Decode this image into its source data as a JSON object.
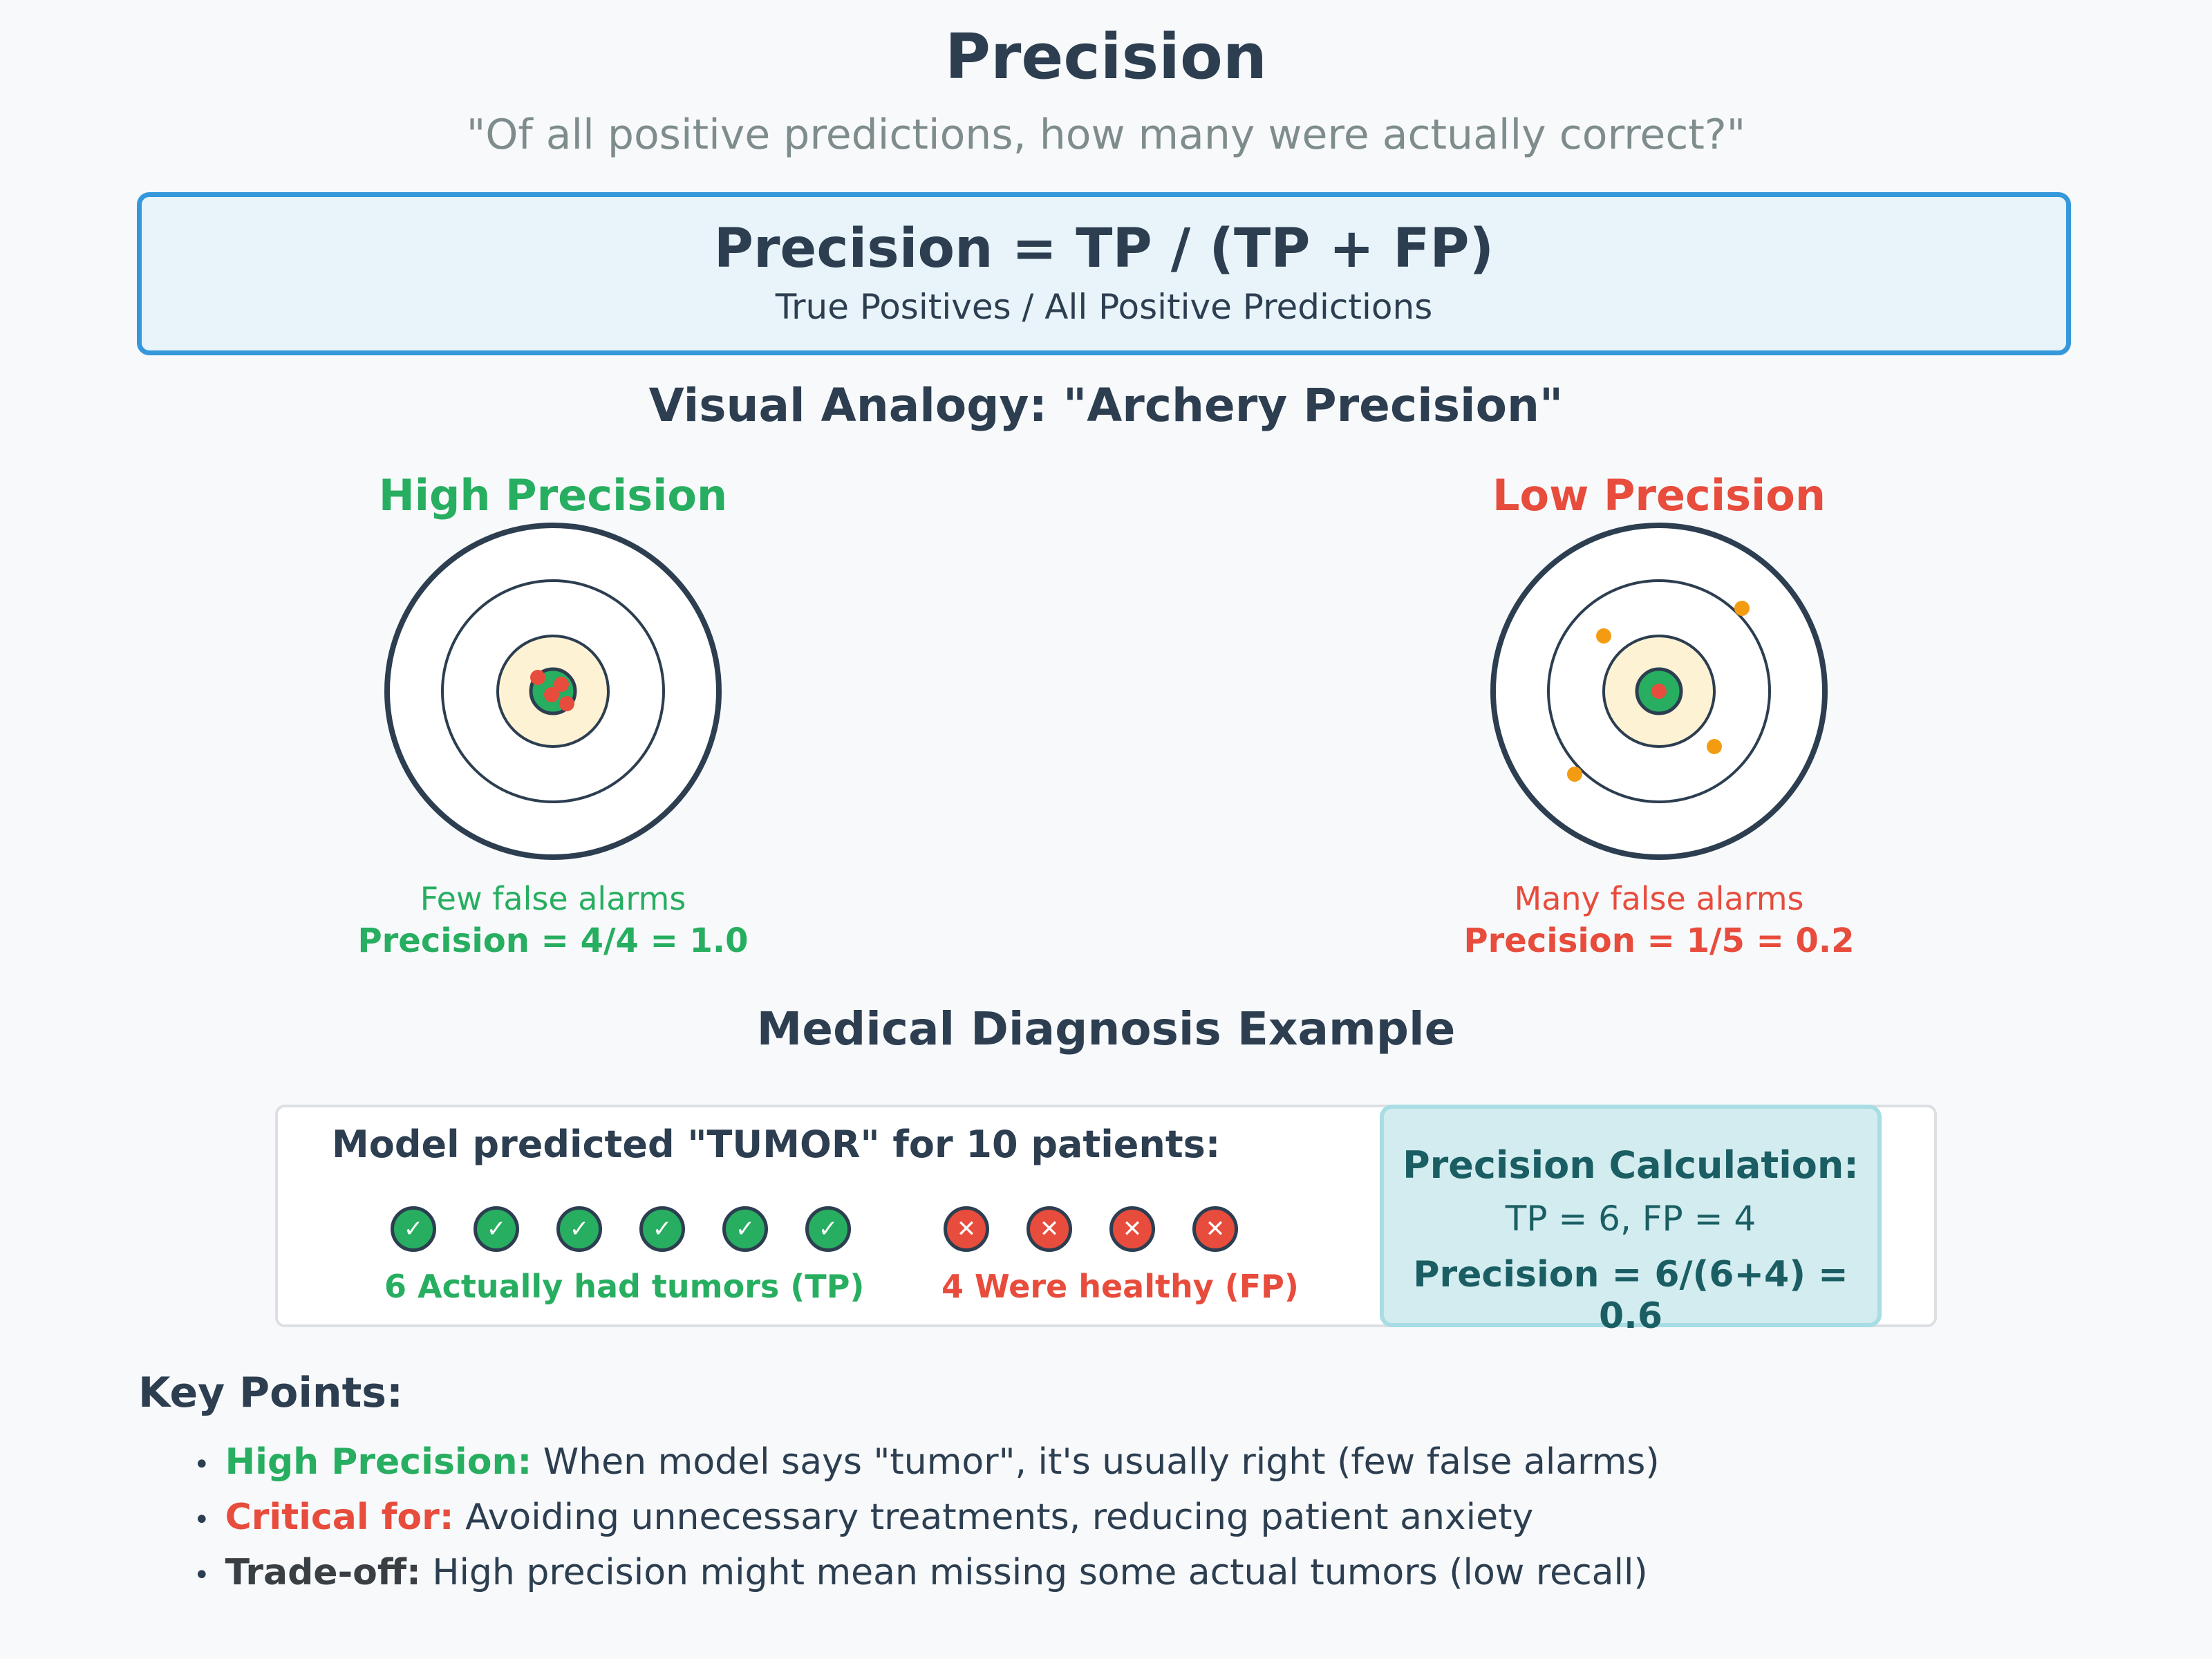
{
  "header": {
    "title": "Precision",
    "subtitle": "\"Of all positive predictions, how many were actually correct?\""
  },
  "formula": {
    "main": "Precision = TP / (TP + FP)",
    "sub": "True Positives / All Positive Predictions"
  },
  "analogy": {
    "title": "Visual Analogy: \"Archery Precision\"",
    "high": {
      "label": "High Precision",
      "caption": "Few false alarms",
      "value": "Precision = 4/4 = 1.0"
    },
    "low": {
      "label": "Low Precision",
      "caption": "Many false alarms",
      "value": "Precision = 1/5 = 0.2"
    }
  },
  "medical": {
    "title": "Medical Diagnosis Example",
    "predicted": "Model predicted \"TUMOR\" for 10 patients:",
    "tp_symbol": "✓",
    "fp_symbol": "✕",
    "tp_label": "6 Actually had tumors (TP)",
    "fp_label": "4 Were healthy (FP)",
    "calc": {
      "title": "Precision Calculation:",
      "line1": "TP = 6, FP = 4",
      "line2": "Precision = 6/(6+4) = 0.6"
    }
  },
  "key_points": {
    "title": "Key Points:",
    "bullet": "•",
    "items": [
      {
        "label": "High Precision:",
        "text": " When model says \"tumor\", it's usually right (few false alarms)"
      },
      {
        "label": "Critical for:",
        "text": " Avoiding unnecessary treatments, reducing patient anxiety"
      },
      {
        "label": "Trade-off:",
        "text": " High precision might mean missing some actual tumors (low recall)"
      }
    ]
  },
  "colors": {
    "accent_blue": "#3498db",
    "positive_green": "#27ae60",
    "negative_red": "#e74c3c",
    "stray_arrow_orange": "#f39c12",
    "target_yellow": "#fdf3d4",
    "dark": "#2c3e50"
  }
}
